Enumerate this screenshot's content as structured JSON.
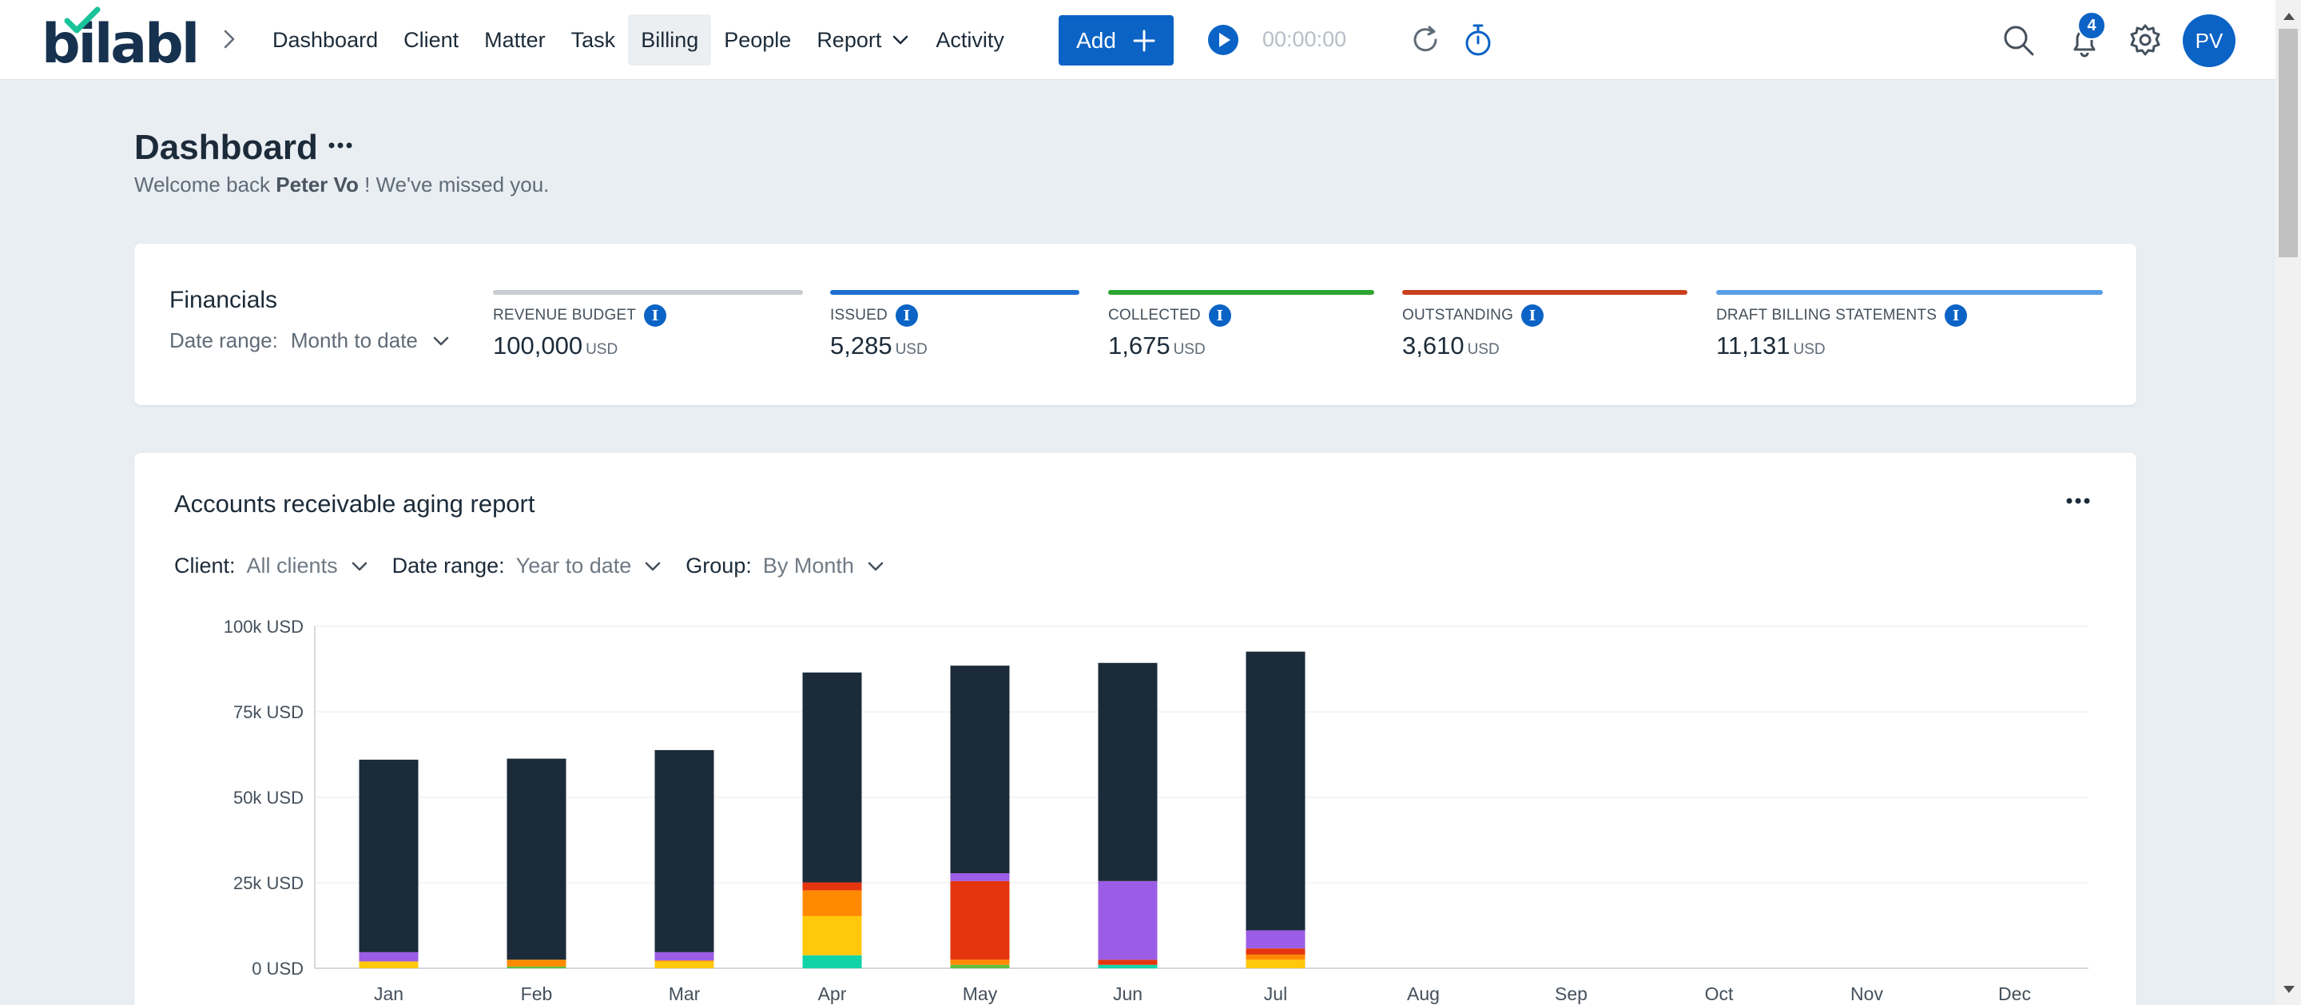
{
  "nav": {
    "logo": "bilabl",
    "items": [
      {
        "label": "Dashboard"
      },
      {
        "label": "Client"
      },
      {
        "label": "Matter"
      },
      {
        "label": "Task"
      },
      {
        "label": "Billing",
        "active": true
      },
      {
        "label": "People"
      },
      {
        "label": "Report",
        "has_caret": true
      },
      {
        "label": "Activity"
      }
    ],
    "add_label": "Add",
    "timer": "00:00:00",
    "notification_count": "4",
    "avatar_initials": "PV",
    "accent": "#0b63c5"
  },
  "page": {
    "title": "Dashboard",
    "welcome_prefix": "Welcome back",
    "user_name": "Peter Vo",
    "welcome_suffix": "! We've missed you."
  },
  "financials": {
    "title": "Financials",
    "date_range_label": "Date range:",
    "date_range_value": "Month to date",
    "metrics": [
      {
        "label": "REVENUE BUDGET",
        "value": "100,000",
        "unit": "USD",
        "color": "#c9cdd1"
      },
      {
        "label": "ISSUED",
        "value": "5,285",
        "unit": "USD",
        "color": "#1e6fd0"
      },
      {
        "label": "COLLECTED",
        "value": "1,675",
        "unit": "USD",
        "color": "#2ea430"
      },
      {
        "label": "OUTSTANDING",
        "value": "3,610",
        "unit": "USD",
        "color": "#c9401f"
      },
      {
        "label": "DRAFT BILLING STATEMENTS",
        "value": "11,131",
        "unit": "USD",
        "color": "#5aa0e8"
      }
    ]
  },
  "aging": {
    "title": "Accounts receivable aging report",
    "filters": [
      {
        "label": "Client:",
        "value": "All clients"
      },
      {
        "label": "Date range:",
        "value": "Year to date"
      },
      {
        "label": "Group:",
        "value": "By Month"
      }
    ]
  },
  "chart_data": {
    "type": "bar",
    "stacked": true,
    "title": "Accounts receivable aging report",
    "categories": [
      "Jan",
      "Feb",
      "Mar",
      "Apr",
      "May",
      "Jun",
      "Jul",
      "Aug",
      "Sep",
      "Oct",
      "Nov",
      "Dec"
    ],
    "ylim": [
      0,
      100000
    ],
    "yticks": [
      {
        "value": 0,
        "label": "0 USD"
      },
      {
        "value": 25000,
        "label": "25k USD"
      },
      {
        "value": 50000,
        "label": "50k USD"
      },
      {
        "value": 75000,
        "label": "75k USD"
      },
      {
        "value": 100000,
        "label": "100k USD"
      }
    ],
    "series": [
      {
        "name": "green",
        "color": "#5fbf3c",
        "values": [
          0,
          500,
          0,
          0,
          1000,
          0,
          0,
          0,
          0,
          0,
          0,
          0
        ]
      },
      {
        "name": "teal",
        "color": "#10d3a8",
        "values": [
          0,
          0,
          0,
          3800,
          0,
          1000,
          0,
          0,
          0,
          0,
          0,
          0
        ]
      },
      {
        "name": "yellow",
        "color": "#ffc80a",
        "values": [
          2000,
          0,
          2000,
          11500,
          0,
          0,
          2500,
          0,
          0,
          0,
          0,
          0
        ]
      },
      {
        "name": "orange",
        "color": "#ff8a00",
        "values": [
          0,
          2000,
          300,
          7500,
          1500,
          0,
          1500,
          0,
          0,
          0,
          0,
          0
        ]
      },
      {
        "name": "red",
        "color": "#e5350e",
        "values": [
          0,
          0,
          0,
          2300,
          23000,
          1500,
          1800,
          0,
          0,
          0,
          0,
          0
        ]
      },
      {
        "name": "purple",
        "color": "#9b5de5",
        "values": [
          2700,
          0,
          2400,
          0,
          2300,
          23000,
          5300,
          0,
          0,
          0,
          0,
          0
        ]
      },
      {
        "name": "dark",
        "color": "#1c2b39",
        "values": [
          56300,
          58800,
          59100,
          61400,
          60700,
          63800,
          81500,
          0,
          0,
          0,
          0,
          0
        ]
      }
    ],
    "grid": true,
    "legend": "none"
  }
}
